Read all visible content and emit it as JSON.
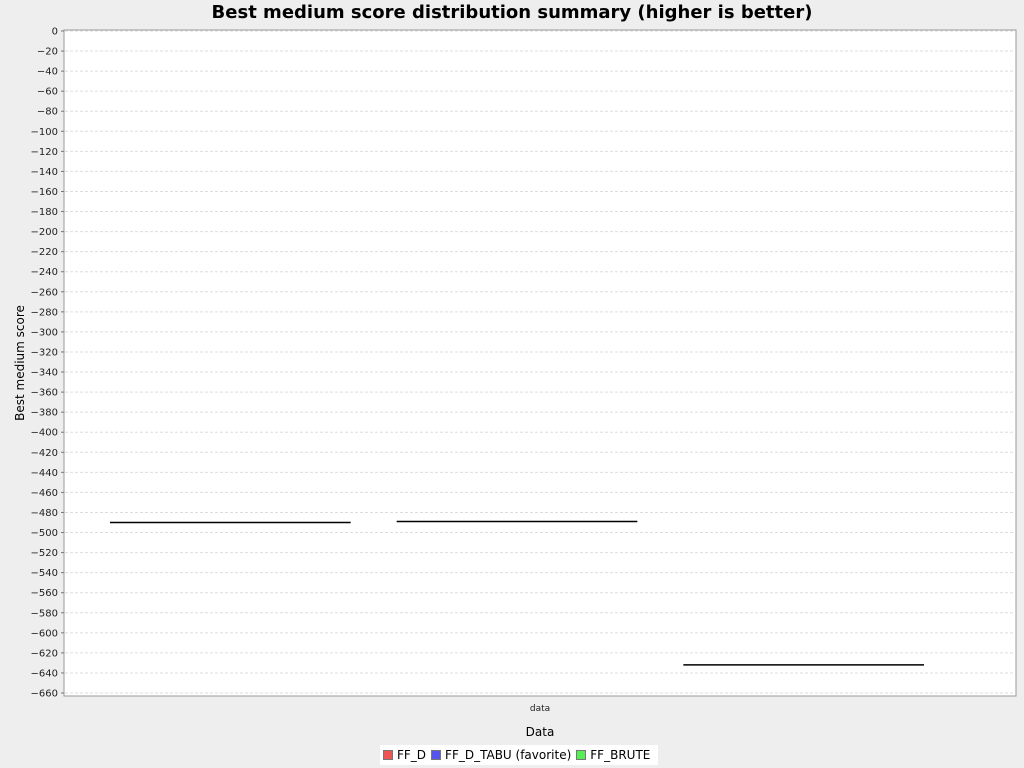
{
  "chart_data": {
    "type": "box",
    "title": "Best medium score distribution summary (higher is better)",
    "xlabel": "Data",
    "ylabel": "Best medium score",
    "categories": [
      "data"
    ],
    "ylim": [
      -660,
      0
    ],
    "ytick_step": 20,
    "grid": true,
    "legend_position": "bottom",
    "series": [
      {
        "name": "FF_D",
        "color": "#ee5555",
        "values": [
          -490
        ]
      },
      {
        "name": "FF_D_TABU (favorite)",
        "color": "#5555ee",
        "values": [
          -489
        ]
      },
      {
        "name": "FF_BRUTE",
        "color": "#55ee55",
        "values": [
          -632
        ]
      }
    ]
  }
}
